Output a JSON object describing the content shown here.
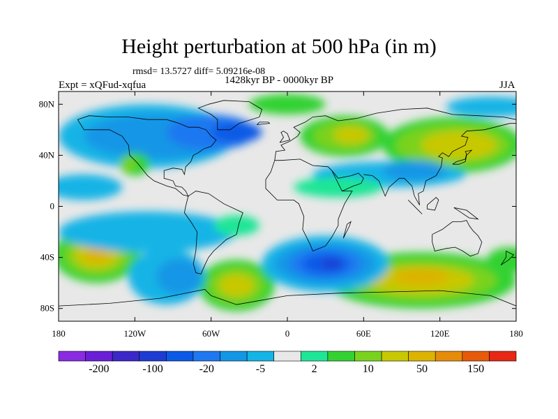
{
  "title": "Height perturbation at 500 hPa (in m)",
  "stats": "rmsd= 13.5727 diff= 5.09216e-08",
  "period": "1428kyr BP - 0000kyr BP",
  "experiment": "Expt = xQFud-xqfua",
  "season": "JJA",
  "lat_ticks": [
    "80N",
    "40N",
    "0",
    "40S",
    "80S"
  ],
  "lon_ticks": [
    "180",
    "120W",
    "60W",
    "0",
    "60E",
    "120E",
    "180"
  ],
  "colorbar": {
    "colors": [
      "#8a2be2",
      "#6a1fd6",
      "#3c28c8",
      "#1e3cd2",
      "#0a5ae6",
      "#1e78f0",
      "#1496e6",
      "#14b4e6",
      "#e8e8e8",
      "#1ee696",
      "#32d232",
      "#7ad21e",
      "#c8c800",
      "#dcb400",
      "#e68c0a",
      "#e65a0a",
      "#e62814"
    ],
    "labels": [
      "-200",
      "-100",
      "-20",
      "-5",
      "2",
      "10",
      "50",
      "150"
    ]
  },
  "field_colors": {
    "neutral": "#e8e8e8",
    "neg1": "#14b4e6",
    "neg2": "#1496e6",
    "neg3": "#1e78f0",
    "neg4": "#0a5ae6",
    "neg5": "#1e3cd2",
    "neg6": "#3c28c8",
    "pos1": "#1ee696",
    "pos2": "#32d232",
    "pos3": "#7ad21e",
    "pos4": "#c8c800",
    "pos5": "#dcb400",
    "pos6": "#e68c0a"
  }
}
